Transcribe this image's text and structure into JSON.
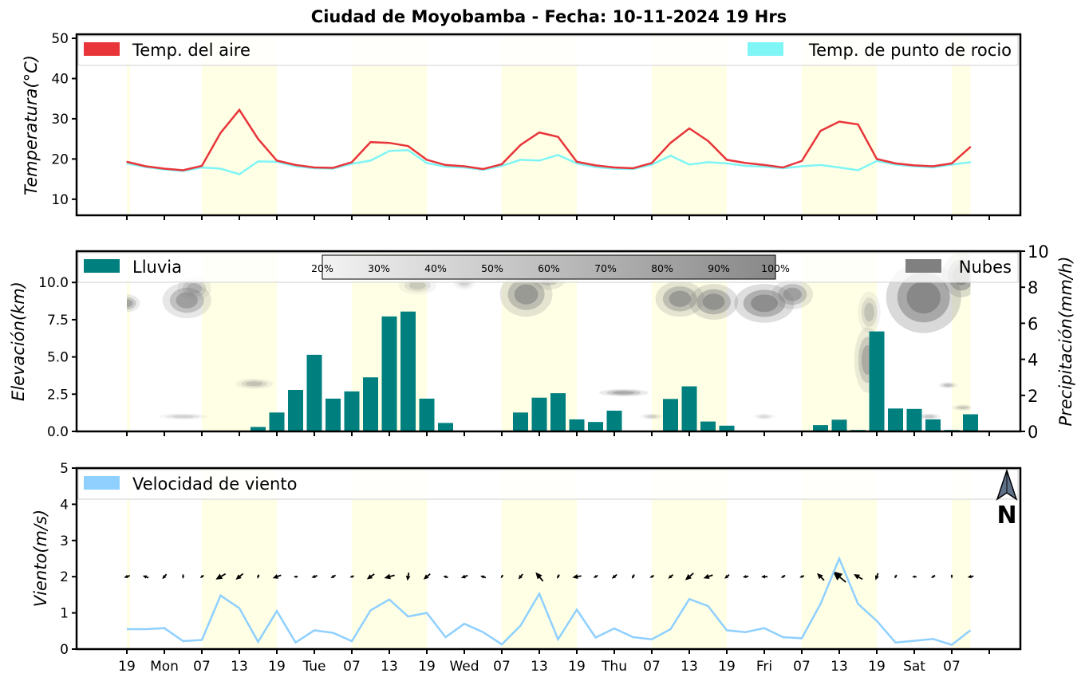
{
  "title": "Ciudad de Moyobamba   -   Fecha: 10-11-2024 19 Hrs",
  "x_tick_labels": [
    "19",
    "Mon",
    "07",
    "13",
    "19",
    "Tue",
    "07",
    "13",
    "19",
    "Wed",
    "07",
    "13",
    "19",
    "Thu",
    "07",
    "13",
    "19",
    "Fri",
    "07",
    "13",
    "19",
    "Sat",
    "07"
  ],
  "colors": {
    "air_temp": "#e8353a",
    "dew_point": "#7ff5f5",
    "rain": "#007f7f",
    "clouds": "#808080",
    "wind": "#8fd0ff",
    "day_shade": "#ffffe6"
  },
  "chart_data": [
    {
      "type": "line",
      "ylabel": "Temperatura(°C)",
      "ylim": [
        6,
        51
      ],
      "yticks": [
        10,
        20,
        30,
        40,
        50
      ],
      "legend": {
        "left": "Temp. del aire",
        "right": "Temp. de punto de rocio"
      },
      "series": [
        {
          "name": "Temp. del aire",
          "values": [
            19.3,
            18.2,
            17.6,
            17.2,
            18.3,
            26.5,
            32.2,
            25.0,
            19.6,
            18.5,
            17.9,
            17.8,
            19.2,
            24.2,
            24.0,
            23.2,
            19.8,
            18.5,
            18.2,
            17.5,
            18.7,
            23.5,
            26.6,
            25.5,
            19.3,
            18.4,
            17.9,
            17.7,
            19.0,
            24.0,
            27.6,
            24.5,
            19.8,
            19.0,
            18.5,
            17.9,
            19.5,
            27.0,
            29.3,
            28.6,
            20.0,
            18.9,
            18.4,
            18.2,
            18.9,
            23.0
          ]
        },
        {
          "name": "Temp. de punto de rocio",
          "values": [
            18.9,
            18.0,
            17.4,
            17.0,
            17.9,
            17.6,
            16.2,
            19.4,
            19.3,
            18.2,
            17.7,
            17.6,
            18.8,
            19.6,
            22.0,
            22.2,
            19.0,
            18.1,
            17.9,
            17.3,
            18.3,
            19.8,
            19.6,
            21.0,
            18.9,
            18.0,
            17.6,
            17.5,
            18.6,
            20.8,
            18.6,
            19.2,
            18.9,
            18.3,
            18.1,
            17.7,
            18.2,
            18.5,
            17.9,
            17.2,
            19.5,
            18.6,
            18.2,
            17.9,
            18.6,
            19.2
          ]
        }
      ]
    },
    {
      "type": "bar",
      "ylabel_left": "Elevación(km)",
      "ylabel_right": "Precipitación(mm/h)",
      "ylim_left": [
        0,
        12.1
      ],
      "yticks_left": [
        "0.0",
        "2.5",
        "5.0",
        "7.5",
        "10.0"
      ],
      "ylim_right": [
        0,
        10
      ],
      "yticks_right": [
        "0",
        "2",
        "4",
        "6",
        "8",
        "10"
      ],
      "legend": {
        "left": "Lluvia",
        "right": "Nubes"
      },
      "colorbar_labels": [
        "20%",
        "30%",
        "40%",
        "50%",
        "60%",
        "70%",
        "80%",
        "90%",
        "100%"
      ],
      "series": [
        {
          "name": "Lluvia",
          "values": [
            0,
            0,
            0,
            0,
            0,
            0,
            0,
            0.25,
            1.05,
            2.3,
            4.25,
            1.82,
            2.22,
            3.0,
            6.38,
            6.65,
            1.82,
            0.47,
            0,
            0,
            0,
            1.05,
            1.87,
            2.12,
            0.67,
            0.52,
            1.15,
            0,
            0,
            1.8,
            2.5,
            0.55,
            0.32,
            0,
            0,
            0,
            0,
            0.35,
            0.65,
            0.08,
            5.55,
            1.27,
            1.25,
            0.67,
            0.08,
            0.95
          ]
        }
      ]
    },
    {
      "type": "line",
      "ylabel": "Viento(m/s)",
      "ylim": [
        0,
        5
      ],
      "yticks": [
        0,
        1,
        2,
        3,
        4,
        5
      ],
      "legend": {
        "left": "Velocidad de viento"
      },
      "north_label": "N",
      "series": [
        {
          "name": "Velocidad de viento",
          "values": [
            0.55,
            0.55,
            0.58,
            0.22,
            0.25,
            1.48,
            1.13,
            0.2,
            1.05,
            0.18,
            0.52,
            0.45,
            0.22,
            1.07,
            1.37,
            0.9,
            1.0,
            0.33,
            0.7,
            0.47,
            0.13,
            0.65,
            1.53,
            0.27,
            1.09,
            0.32,
            0.57,
            0.33,
            0.27,
            0.55,
            1.38,
            1.19,
            0.52,
            0.47,
            0.58,
            0.33,
            0.3,
            1.25,
            2.5,
            1.25,
            0.78,
            0.18,
            0.23,
            0.28,
            0.12,
            0.52
          ]
        }
      ]
    }
  ]
}
